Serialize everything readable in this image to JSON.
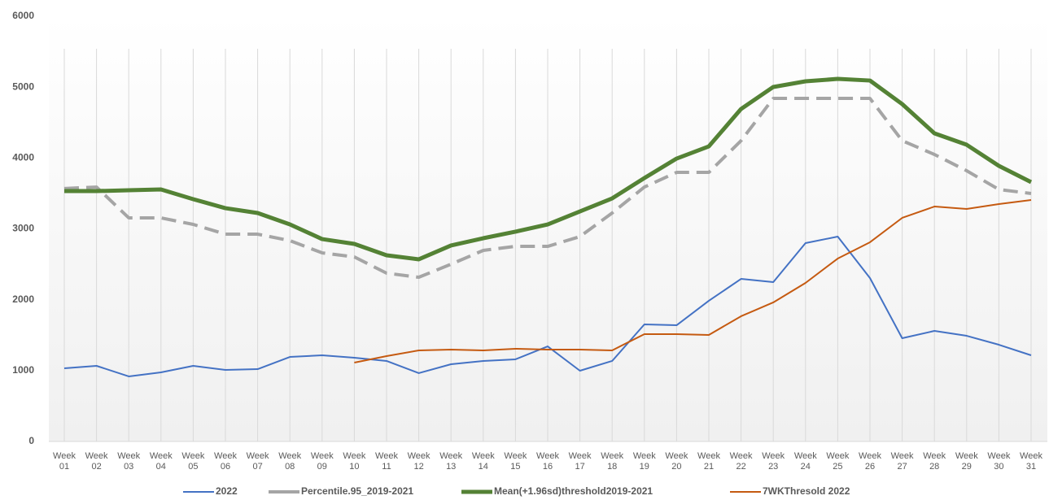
{
  "chart_data": {
    "type": "line",
    "categories": [
      "Week 01",
      "Week 02",
      "Week 03",
      "Week 04",
      "Week 05",
      "Week 06",
      "Week 07",
      "Week 08",
      "Week 09",
      "Week 10",
      "Week 11",
      "Week 12",
      "Week 13",
      "Week 14",
      "Week 15",
      "Week 16",
      "Week 17",
      "Week 18",
      "Week 19",
      "Week 20",
      "Week 21",
      "Week 22",
      "Week 23",
      "Week 24",
      "Week 25",
      "Week 26",
      "Week 27",
      "Week 28",
      "Week 29",
      "Week 30",
      "Week 31"
    ],
    "ylim": [
      0,
      6000
    ],
    "yticks": [
      0,
      1000,
      2000,
      3000,
      4000,
      5000,
      6000
    ],
    "grid": "vertical",
    "series": [
      {
        "name": "2022",
        "color": "#4472c4",
        "width": 2,
        "dash": false,
        "values": [
          1032,
          1067,
          918,
          975,
          1067,
          1010,
          1021,
          1193,
          1216,
          1182,
          1136,
          964,
          1090,
          1136,
          1159,
          1342,
          998,
          1136,
          1652,
          1640,
          1985,
          2294,
          2249,
          2799,
          2891,
          2306,
          1457,
          1560,
          1491,
          1365,
          1216
        ]
      },
      {
        "name": "Percentile.95_2019-2021",
        "color": "#a5a5a5",
        "width": 4,
        "dash": true,
        "values": [
          3570,
          3590,
          3155,
          3155,
          3063,
          2925,
          2925,
          2834,
          2661,
          2604,
          2375,
          2317,
          2501,
          2696,
          2753,
          2753,
          2891,
          3224,
          3590,
          3797,
          3797,
          4244,
          4841,
          4841,
          4841,
          4841,
          4244,
          4050,
          3820,
          3556,
          3499
        ]
      },
      {
        "name": "Mean(+1.96sd)threshold2019-2021",
        "color": "#548235",
        "width": 5,
        "dash": false,
        "values": [
          3533,
          3533,
          3545,
          3556,
          3419,
          3292,
          3224,
          3063,
          2856,
          2788,
          2627,
          2570,
          2765,
          2868,
          2960,
          3063,
          3246,
          3430,
          3717,
          3992,
          4164,
          4692,
          5002,
          5082,
          5116,
          5093,
          4761,
          4348,
          4187,
          3889,
          3660
        ]
      },
      {
        "name": "7WKThresold 2022",
        "color": "#c55a11",
        "width": 2,
        "dash": false,
        "values": [
          null,
          null,
          null,
          null,
          null,
          null,
          null,
          null,
          null,
          1113,
          1205,
          1285,
          1296,
          1285,
          1308,
          1296,
          1296,
          1285,
          1514,
          1514,
          1503,
          1767,
          1962,
          2237,
          2581,
          2811,
          3155,
          3315,
          3281,
          3350,
          3407
        ]
      }
    ]
  }
}
